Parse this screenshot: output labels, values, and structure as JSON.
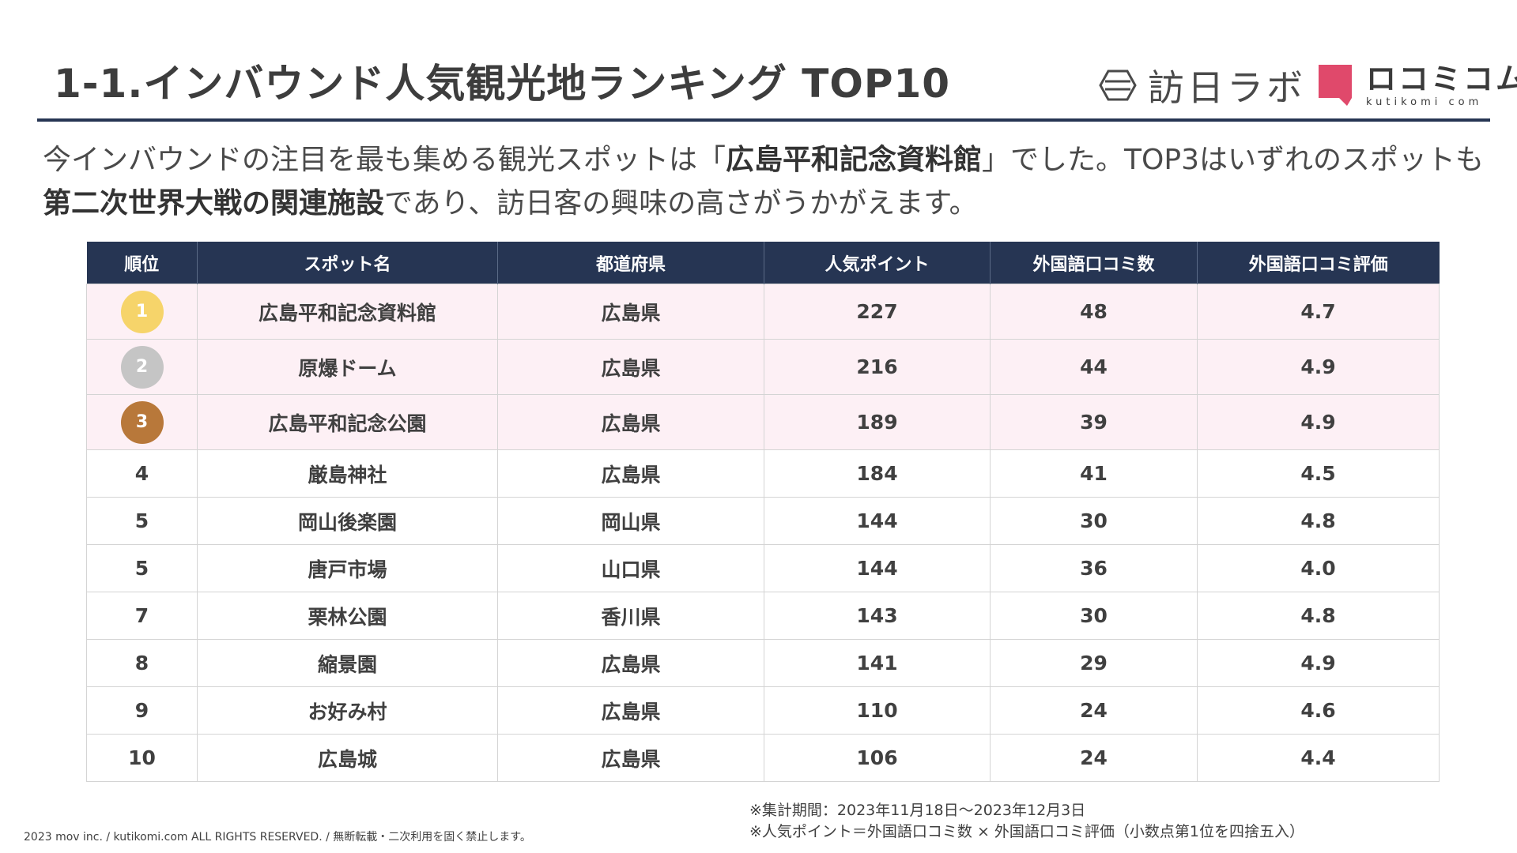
{
  "title": "1-1.インバウンド人気観光地ランキング TOP10",
  "logos": {
    "houjitsu_lab": "訪日ラボ",
    "kutikomi": "ロコミコム",
    "kutikomi_sub": "kutikomi com",
    "kutikomi_color": "#e0496b"
  },
  "intro": {
    "p1": "今インバウンドの注目を最も集める観光スポットは「",
    "b1": "広島平和記念資料館",
    "p2": "」でした。TOP3はいずれのスポットも",
    "b2": "第二次世界大戦の関連施設",
    "p3": "であり、訪日客の興味の高さがうかがえます。"
  },
  "table": {
    "headers": [
      "順位",
      "スポット名",
      "都道府県",
      "人気ポイント",
      "外国語口コミ数",
      "外国語口コミ評価"
    ],
    "medal_colors": [
      "#f6d46a",
      "#c5c5c5",
      "#b8783a"
    ],
    "rows": [
      {
        "rank": "1",
        "spot": "広島平和記念資料館",
        "pref": "広島県",
        "points": "227",
        "reviews": "48",
        "rating": "4.7"
      },
      {
        "rank": "2",
        "spot": "原爆ドーム",
        "pref": "広島県",
        "points": "216",
        "reviews": "44",
        "rating": "4.9"
      },
      {
        "rank": "3",
        "spot": "広島平和記念公園",
        "pref": "広島県",
        "points": "189",
        "reviews": "39",
        "rating": "4.9"
      },
      {
        "rank": "4",
        "spot": "厳島神社",
        "pref": "広島県",
        "points": "184",
        "reviews": "41",
        "rating": "4.5"
      },
      {
        "rank": "5",
        "spot": "岡山後楽園",
        "pref": "岡山県",
        "points": "144",
        "reviews": "30",
        "rating": "4.8"
      },
      {
        "rank": "5",
        "spot": "唐戸市場",
        "pref": "山口県",
        "points": "144",
        "reviews": "36",
        "rating": "4.0"
      },
      {
        "rank": "7",
        "spot": "栗林公園",
        "pref": "香川県",
        "points": "143",
        "reviews": "30",
        "rating": "4.8"
      },
      {
        "rank": "8",
        "spot": "縮景園",
        "pref": "広島県",
        "points": "141",
        "reviews": "29",
        "rating": "4.9"
      },
      {
        "rank": "9",
        "spot": "お好み村",
        "pref": "広島県",
        "points": "110",
        "reviews": "24",
        "rating": "4.6"
      },
      {
        "rank": "10",
        "spot": "広島城",
        "pref": "広島県",
        "points": "106",
        "reviews": "24",
        "rating": "4.4"
      }
    ]
  },
  "notes": {
    "period": "※集計期間：2023年11月18日～2023年12月3日",
    "formula": "※人気ポイント＝外国語口コミ数 × 外国語口コミ評価（小数点第1位を四捨五入）"
  },
  "footer": "2023 mov inc. / kutikomi.com ALL RIGHTS RESERVED. / 無断転載・二次利用を固く禁止します。"
}
